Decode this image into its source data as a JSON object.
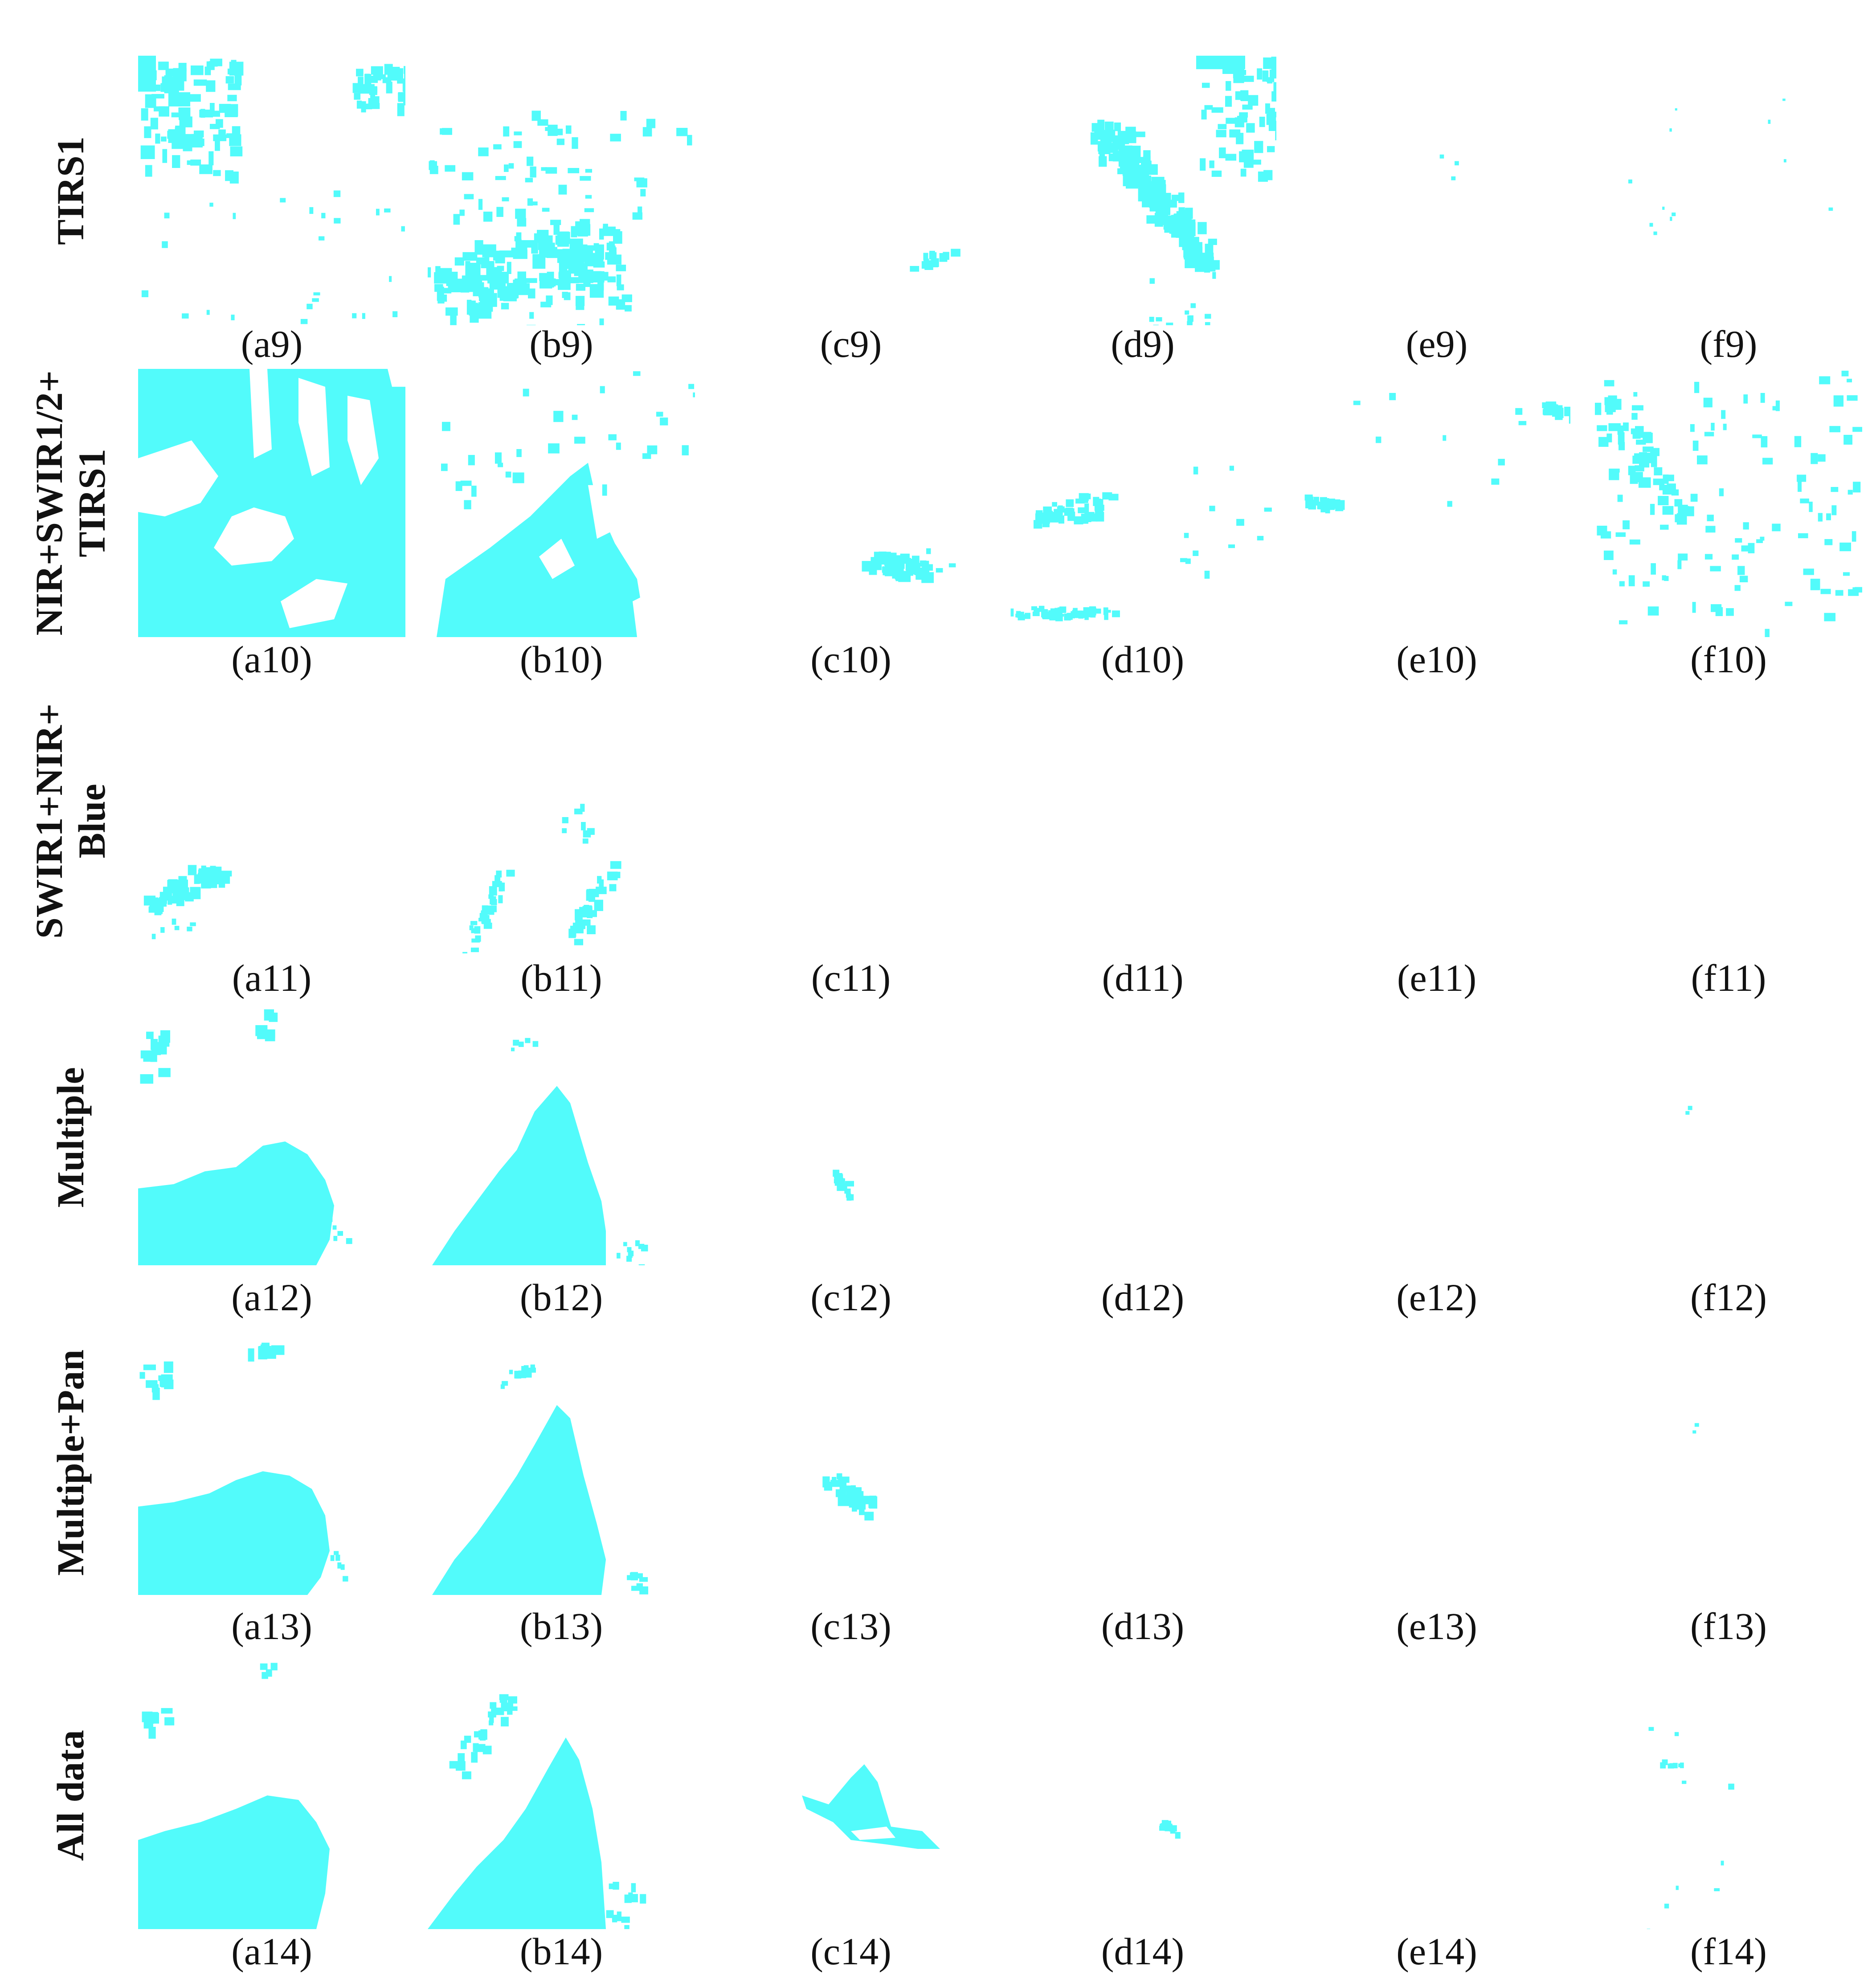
{
  "figure": {
    "fill_color": "#52FBFB",
    "rows": [
      {
        "label": "TIRS1",
        "captions": [
          "(a9)",
          "(b9)",
          "(c9)",
          "(d9)",
          "(e9)",
          "(f9)"
        ]
      },
      {
        "label": "NIR+SWIR1/2+\nTIRS1",
        "captions": [
          "(a10)",
          "(b10)",
          "(c10)",
          "(d10)",
          "(e10)",
          "(f10)"
        ]
      },
      {
        "label": "SWIR1+NIR+\nBlue",
        "captions": [
          "(a11)",
          "(b11)",
          "(c11)",
          "(d11)",
          "(e11)",
          "(f11)"
        ]
      },
      {
        "label": "Multiple",
        "captions": [
          "(a12)",
          "(b12)",
          "(c12)",
          "(d12)",
          "(e12)",
          "(f12)"
        ]
      },
      {
        "label": "Multiple+Pan",
        "captions": [
          "(a13)",
          "(b13)",
          "(c13)",
          "(d13)",
          "(e13)",
          "(f13)"
        ]
      },
      {
        "label": "All data",
        "captions": [
          "(a14)",
          "(b14)",
          "(c14)",
          "(d14)",
          "(e14)",
          "(f14)"
        ]
      }
    ]
  }
}
